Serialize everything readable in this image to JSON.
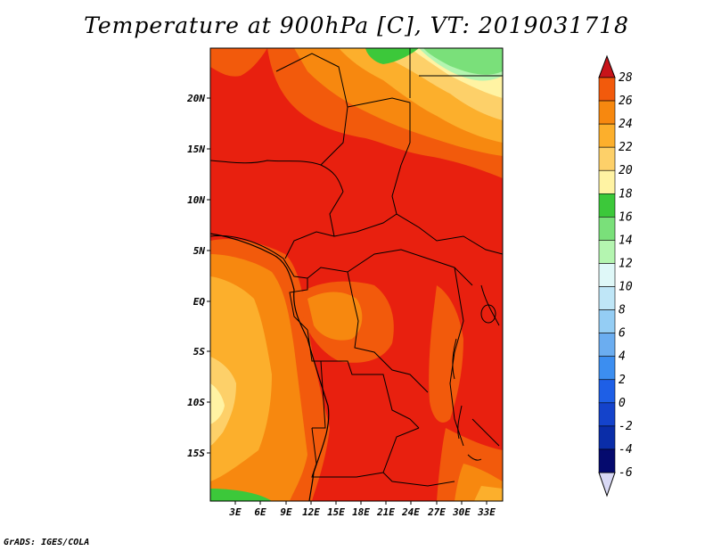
{
  "title": "Temperature at 900hPa [C], VT: 2019031718",
  "credit": "GrADS: IGES/COLA",
  "map": {
    "lat_labels": [
      "20N",
      "15N",
      "10N",
      "5N",
      "EQ",
      "5S",
      "10S",
      "15S"
    ],
    "lon_labels": [
      "3E",
      "6E",
      "9E",
      "12E",
      "15E",
      "18E",
      "21E",
      "24E",
      "27E",
      "30E",
      "33E"
    ]
  },
  "colorbar": {
    "labels": [
      "28",
      "26",
      "24",
      "22",
      "20",
      "18",
      "16",
      "14",
      "12",
      "10",
      "8",
      "6",
      "4",
      "2",
      "0",
      "-2",
      "-4",
      "-6"
    ],
    "colors": [
      "#e8200f",
      "#f25a0c",
      "#f7880f",
      "#fcaf2c",
      "#fdd069",
      "#fff3a3",
      "#3cc83a",
      "#7ae07a",
      "#b4f5b0",
      "#dff8f8",
      "#bfe6f7",
      "#94cdf4",
      "#6badf0",
      "#3c8ef0",
      "#1e5fe6",
      "#1443cb",
      "#0a2da8",
      "#050a6e"
    ]
  }
}
